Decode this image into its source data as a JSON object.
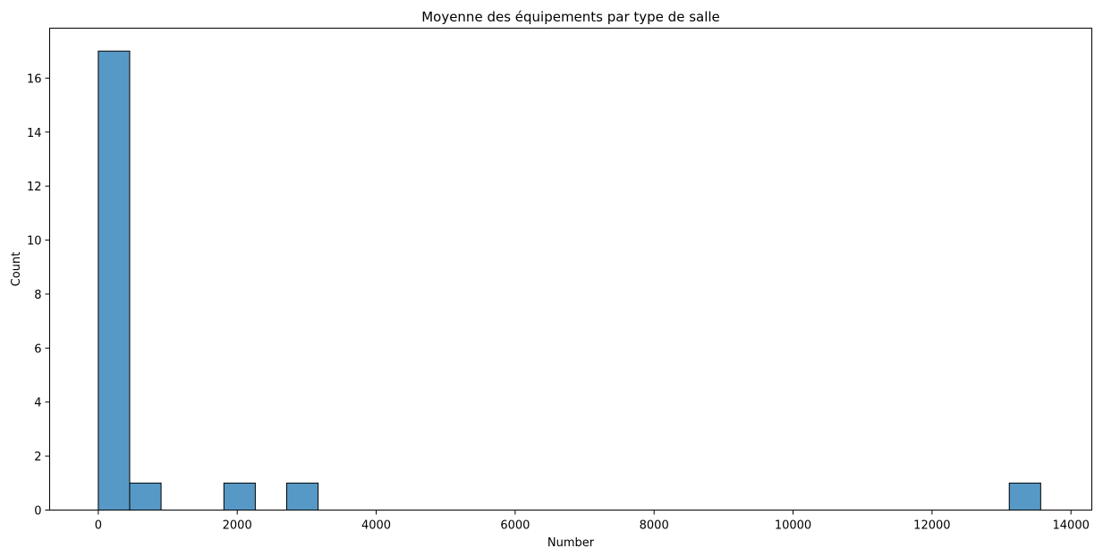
{
  "chart_data": {
    "type": "bar",
    "title": "Moyenne des équipements par type de salle",
    "xlabel": "Number",
    "ylabel": "Count",
    "xlim": [
      -700,
      14300
    ],
    "ylim": [
      0,
      17.85
    ],
    "xticks": [
      0,
      2000,
      4000,
      6000,
      8000,
      10000,
      12000,
      14000
    ],
    "yticks": [
      0,
      2,
      4,
      6,
      8,
      10,
      12,
      14,
      16
    ],
    "bins": [
      {
        "x0": 0,
        "x1": 452,
        "count": 17
      },
      {
        "x0": 452,
        "x1": 904,
        "count": 1
      },
      {
        "x0": 1808,
        "x1": 2260,
        "count": 1
      },
      {
        "x0": 2712,
        "x1": 3164,
        "count": 1
      },
      {
        "x0": 13112,
        "x1": 13564,
        "count": 1
      }
    ],
    "bar_color": "#5799c6",
    "edge_color": "#000000",
    "grid": false,
    "legend": "none"
  }
}
